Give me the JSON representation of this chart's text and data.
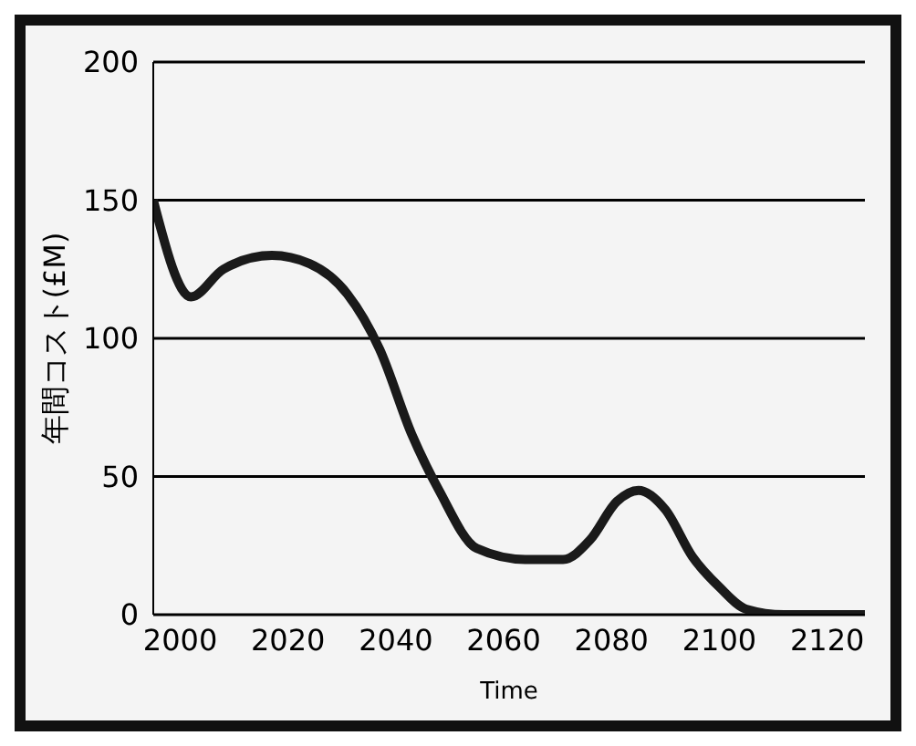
{
  "chart_data": {
    "type": "line",
    "xlabel": "Time",
    "ylabel": "年間コスト(£M)",
    "xlim": [
      1995,
      2127
    ],
    "xticks": [
      2000,
      2020,
      2040,
      2060,
      2080,
      2100,
      2120
    ],
    "ylim": [
      0,
      200
    ],
    "yticks": [
      0,
      50,
      100,
      150,
      200
    ],
    "grid": "y",
    "legend": false,
    "marker": "none",
    "line_style": "solid",
    "series": [
      {
        "color": "#1a1a1a",
        "x": [
          1995,
          2002,
          2008,
          2017,
          2024,
          2031,
          2037,
          2043,
          2048,
          2055,
          2064,
          2071,
          2076,
          2081,
          2085,
          2090,
          2095,
          2100,
          2105,
          2112,
          2127
        ],
        "values": [
          150,
          115,
          125,
          130,
          127,
          116,
          96,
          65,
          45,
          24,
          20,
          20,
          27,
          41,
          45,
          38,
          21,
          10,
          2,
          0,
          0
        ]
      }
    ]
  }
}
